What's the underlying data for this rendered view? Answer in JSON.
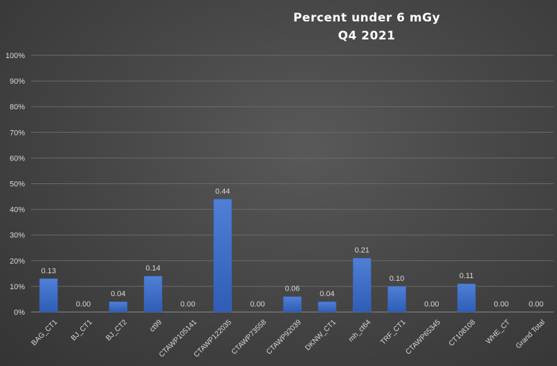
{
  "chart_data": {
    "type": "bar",
    "title": "Percent under 6 mGy",
    "subtitle": "Q4 2021",
    "categories": [
      "BAG_CT1",
      "BJ_CT1",
      "BJ_CT2",
      "ct99",
      "CTAWP105141",
      "CTAWP122035",
      "CTAWP73558",
      "CTAWP92039",
      "DKNW_CT1",
      "mh_ct64",
      "TRF_CT1",
      "CTAWP65345",
      "CT108108",
      "WHE_CT",
      "Grand Total"
    ],
    "values": [
      0.13,
      0.0,
      0.04,
      0.14,
      0.0,
      0.44,
      0.0,
      0.06,
      0.04,
      0.21,
      0.1,
      0.0,
      0.11,
      0.0,
      0.0
    ],
    "data_labels": [
      "0.13",
      "0.00",
      "0.04",
      "0.14",
      "0.00",
      "0.44",
      "0.00",
      "0.06",
      "0.04",
      "0.21",
      "0.10",
      "0.00",
      "0.11",
      "0.00",
      "0.00"
    ],
    "yticks": [
      "0%",
      "10%",
      "20%",
      "30%",
      "40%",
      "50%",
      "60%",
      "70%",
      "80%",
      "90%",
      "100%"
    ],
    "ylim": [
      0,
      1
    ],
    "grid": true,
    "legend": "none",
    "bar_color": "#4472c4",
    "xlabel": "",
    "ylabel": ""
  }
}
